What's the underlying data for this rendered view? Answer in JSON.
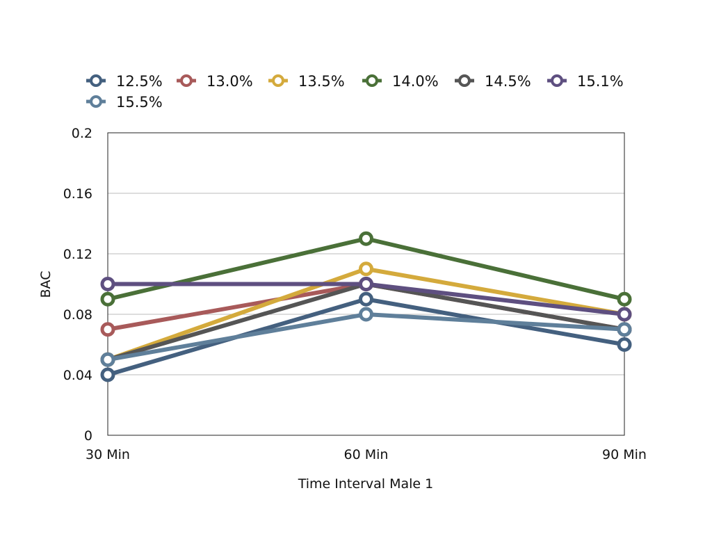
{
  "chart_data": {
    "type": "line",
    "title": "",
    "xlabel": "Time Interval Male 1",
    "ylabel": "BAC",
    "categories": [
      "30 Min",
      "60 Min",
      "90 Min"
    ],
    "ylim": [
      0,
      0.2
    ],
    "yticks": [
      "0",
      "0.04",
      "0.08",
      "0.12",
      "0.16",
      "0.2"
    ],
    "grid": true,
    "legend_position": "top",
    "series": [
      {
        "name": "12.5%",
        "color": "#44607f",
        "values": [
          0.04,
          0.09,
          0.06
        ]
      },
      {
        "name": "13.0%",
        "color": "#a85a5a",
        "values": [
          0.07,
          0.1,
          0.07
        ]
      },
      {
        "name": "13.5%",
        "color": "#d4aa3c",
        "values": [
          0.05,
          0.11,
          0.08
        ]
      },
      {
        "name": "14.0%",
        "color": "#4a7038",
        "values": [
          0.09,
          0.13,
          0.09
        ]
      },
      {
        "name": "14.5%",
        "color": "#555555",
        "values": [
          0.05,
          0.1,
          0.07
        ]
      },
      {
        "name": "15.1%",
        "color": "#5e4f80",
        "values": [
          0.1,
          0.1,
          0.08
        ]
      },
      {
        "name": "15.5%",
        "color": "#5f7f9a",
        "values": [
          0.05,
          0.08,
          0.07
        ]
      }
    ]
  }
}
